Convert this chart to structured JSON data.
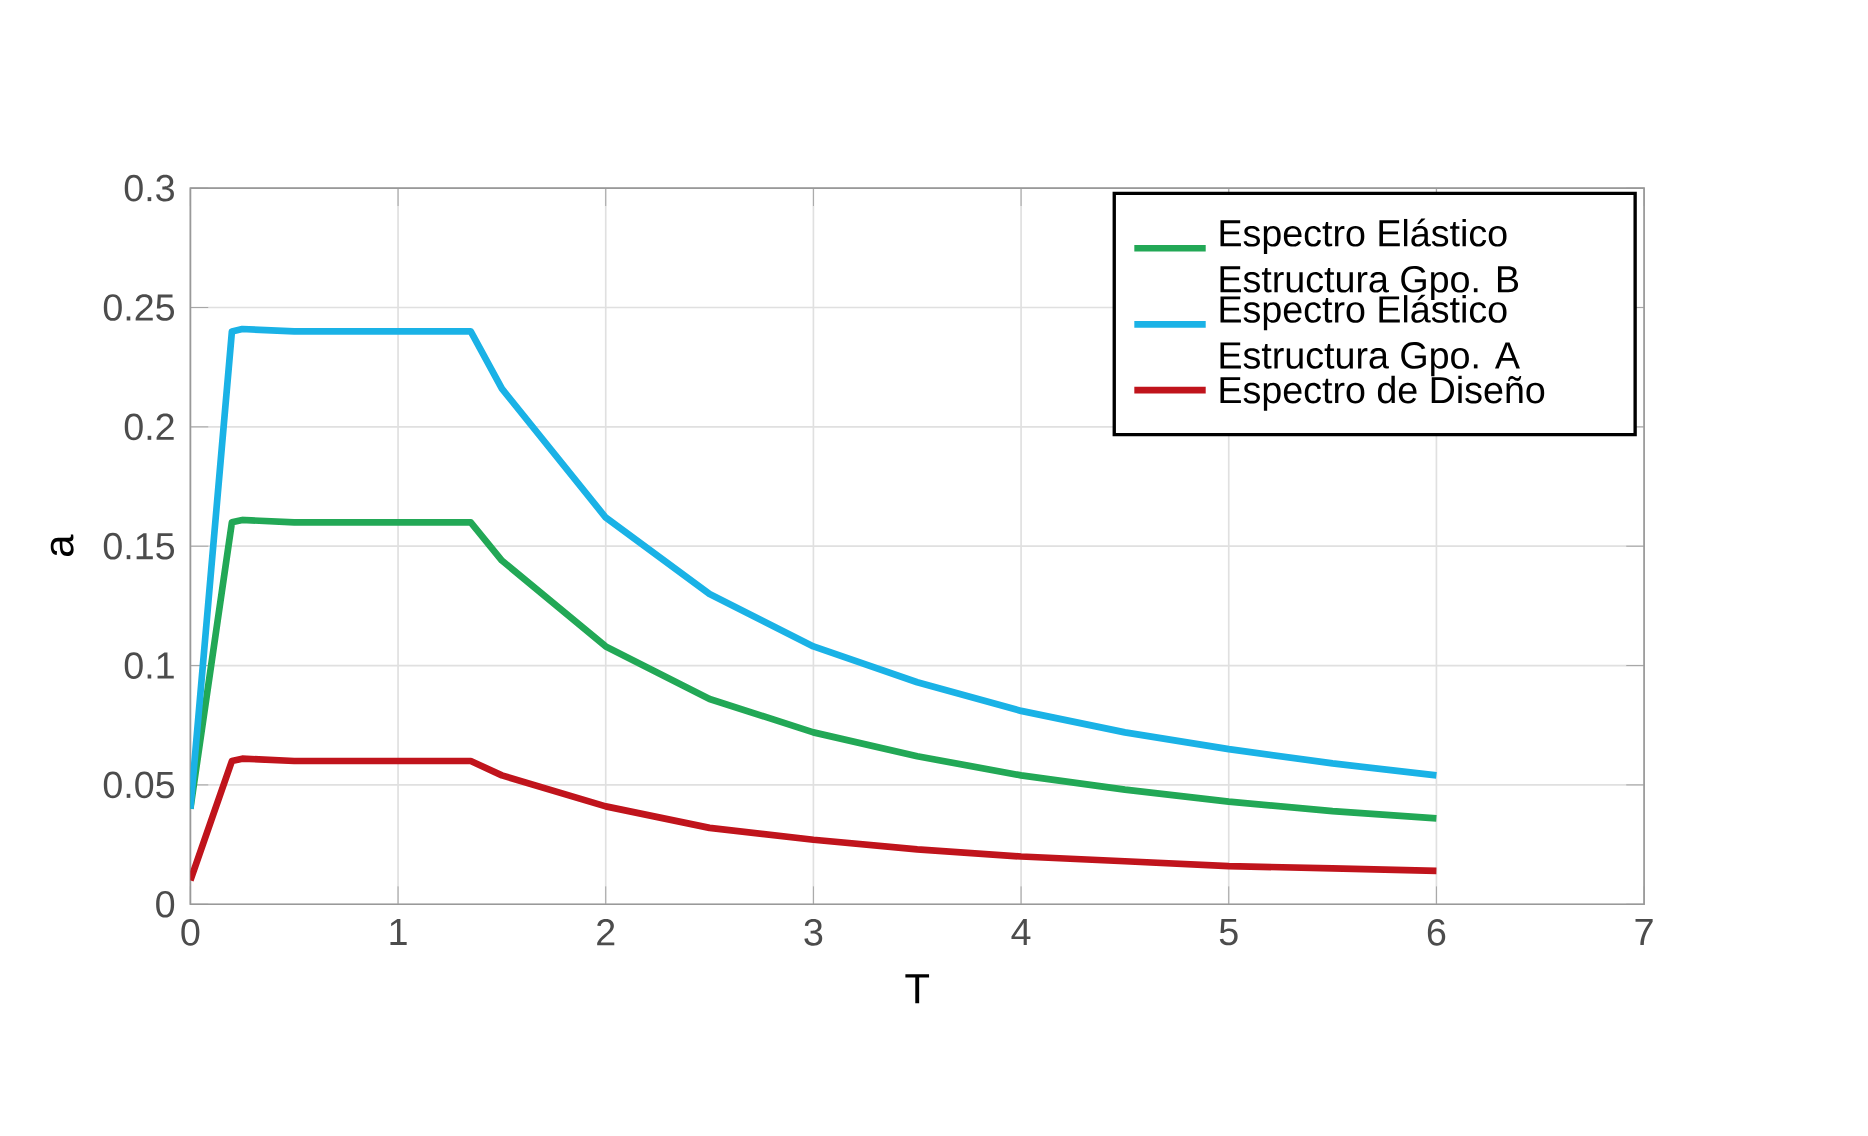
{
  "chart_data": {
    "type": "line",
    "xlabel": "T",
    "ylabel": "a",
    "xlim": [
      0,
      7
    ],
    "xticks": [
      0,
      1,
      2,
      3,
      4,
      5,
      6,
      7
    ],
    "ylim": [
      0,
      0.3
    ],
    "yticks": [
      0,
      0.05,
      0.1,
      0.15,
      0.2,
      0.25,
      0.3
    ],
    "grid": true,
    "legend": "top right",
    "marker": "none",
    "line_style": "solid",
    "series": [
      {
        "name": "Espectro Elástico Estructura Gpo. B",
        "color": "#22a856",
        "x": [
          0,
          0.1,
          0.2,
          0.25,
          0.5,
          1,
          1.3,
          1.35,
          1.5,
          2,
          2.5,
          3,
          3.5,
          4,
          4.5,
          5,
          5.5,
          6
        ],
        "values": [
          0.04,
          0.1,
          0.16,
          0.161,
          0.16,
          0.16,
          0.16,
          0.16,
          0.144,
          0.108,
          0.086,
          0.072,
          0.062,
          0.054,
          0.048,
          0.043,
          0.039,
          0.036
        ]
      },
      {
        "name": "Espectro Elástico Estructura Gpo. A",
        "color": "#1ab2e6",
        "x": [
          0,
          0.1,
          0.2,
          0.25,
          0.5,
          1,
          1.3,
          1.35,
          1.5,
          2,
          2.5,
          3,
          3.5,
          4,
          4.5,
          5,
          5.5,
          6
        ],
        "values": [
          0.04,
          0.14,
          0.24,
          0.241,
          0.24,
          0.24,
          0.24,
          0.24,
          0.216,
          0.162,
          0.13,
          0.108,
          0.093,
          0.081,
          0.072,
          0.065,
          0.059,
          0.054
        ]
      },
      {
        "name": "Espectro de Diseño",
        "color": "#c0141c",
        "x": [
          0,
          0.1,
          0.2,
          0.25,
          0.5,
          1,
          1.3,
          1.35,
          1.5,
          2,
          2.5,
          3,
          3.5,
          4,
          4.5,
          5,
          5.5,
          6
        ],
        "values": [
          0.01,
          0.035,
          0.06,
          0.061,
          0.06,
          0.06,
          0.06,
          0.06,
          0.054,
          0.041,
          0.032,
          0.027,
          0.023,
          0.02,
          0.018,
          0.016,
          0.015,
          0.014
        ]
      }
    ]
  }
}
